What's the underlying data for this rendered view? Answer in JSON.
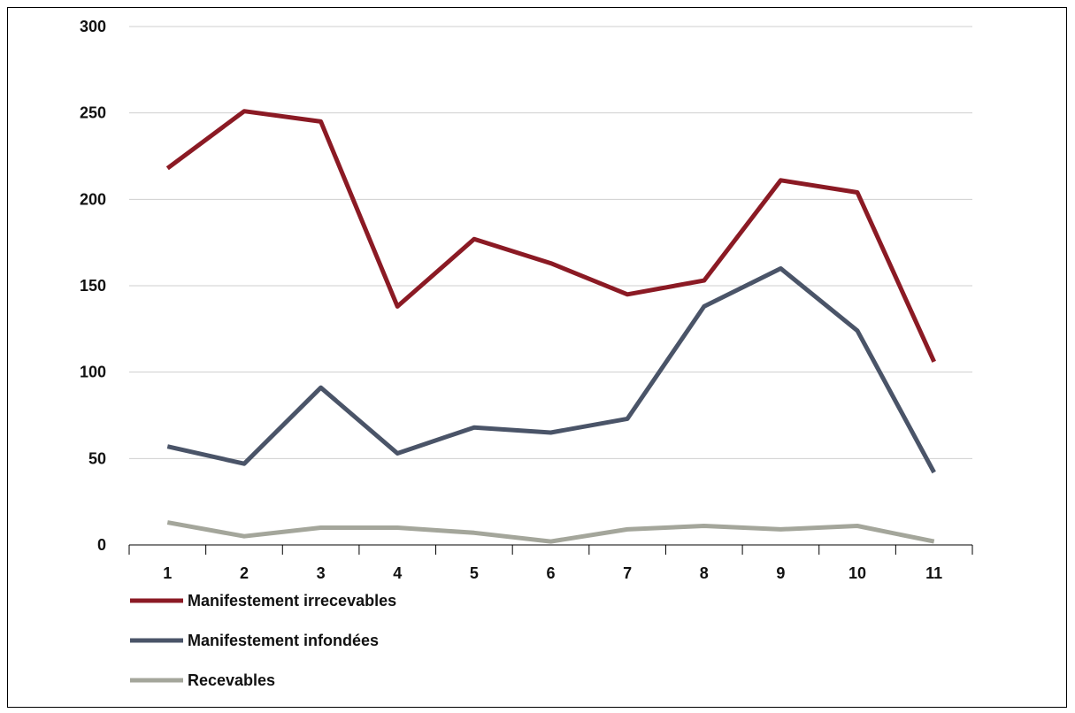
{
  "chart_data": {
    "type": "line",
    "title": "",
    "xlabel": "",
    "ylabel": "",
    "categories": [
      "1",
      "2",
      "3",
      "4",
      "5",
      "6",
      "7",
      "8",
      "9",
      "10",
      "11"
    ],
    "ylim": [
      0,
      300
    ],
    "yticks": [
      "0",
      "50",
      "100",
      "150",
      "200",
      "250",
      "300"
    ],
    "grid": true,
    "legend_position": "bottom-left",
    "series": [
      {
        "name": "Manifestement irrecevables",
        "color": "#8b1a24",
        "values": [
          218,
          251,
          245,
          138,
          177,
          163,
          145,
          153,
          211,
          204,
          106
        ]
      },
      {
        "name": "Manifestement infondées",
        "color": "#4a5468",
        "values": [
          57,
          47,
          91,
          53,
          68,
          65,
          73,
          138,
          160,
          124,
          42
        ]
      },
      {
        "name": "Recevables",
        "color": "#a4a69b",
        "values": [
          13,
          5,
          10,
          10,
          7,
          2,
          9,
          11,
          9,
          11,
          2
        ]
      }
    ]
  }
}
